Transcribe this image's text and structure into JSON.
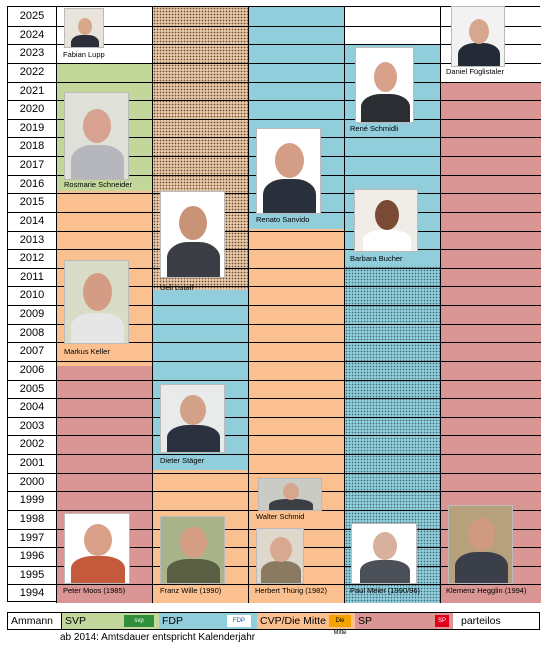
{
  "years": [
    "2025",
    "2024",
    "2023",
    "2022",
    "2021",
    "2020",
    "2019",
    "2018",
    "2017",
    "2016",
    "2015",
    "2014",
    "2013",
    "2012",
    "2011",
    "2010",
    "2009",
    "2008",
    "2007",
    "2006",
    "2005",
    "2004",
    "2003",
    "2002",
    "2001",
    "2000",
    "1999",
    "1998",
    "1997",
    "1996",
    "1995",
    "1994"
  ],
  "people": {
    "fabian": "Fabian Lupp",
    "daniel": "Daniel Füglistaler",
    "rene": "René Schmidli",
    "rosmarie": "Rosmarie Schneider",
    "renato": "Renato Sanvido",
    "barbara": "Barbara Bucher",
    "ueli": "Ueli Lutolf",
    "markus": "Markus Keller",
    "dieter": "Dieter Stäger",
    "walter": "Walter Schmid",
    "peter": "Peter Moos (1985)",
    "franz": "Franz Wille (1990)",
    "herbert": "Herbert Thürig (1982)",
    "paul": "Paul Meier (1990/96)",
    "klemenz": "Klemenz Hegglin (1994)"
  },
  "legend": {
    "title": "Ammann",
    "svp": "SVP",
    "fdp": "FDP",
    "cvp": "CVP/Die Mitte",
    "sp": "SP",
    "pl": "parteilos",
    "svp_icon": "svp",
    "fdp_icon": "FDP",
    "cvp_icon": "Die Mitte",
    "sp_icon": "SP"
  },
  "note": "ab 2014: Amtsdauer entspricht Kalenderjahr",
  "colors": {
    "svp": "#c4d79b",
    "fdp": "#92cddc",
    "cvp": "#fac090",
    "sp": "#da9694",
    "parteilos": "#ffffff"
  }
}
